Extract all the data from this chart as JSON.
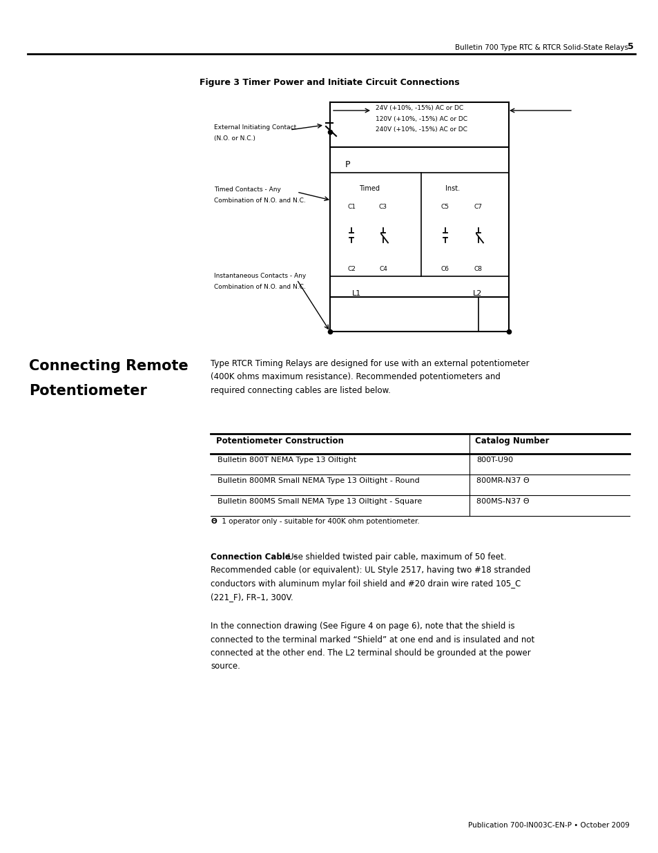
{
  "page_width": 9.54,
  "page_height": 12.35,
  "dpi": 100,
  "bg_color": "#ffffff",
  "header_text": "Bulletin 700 Type RTC & RTCR Solid-State Relays",
  "header_page": "5",
  "footer_text": "Publication 700-IN003C-EN-P • October 2009",
  "figure_title": "Figure 3 Timer Power and Initiate Circuit Connections",
  "section_title_line1": "Connecting Remote",
  "section_title_line2": "Potentiometer",
  "intro_text_lines": [
    "Type RTCR Timing Relays are designed for use with an external potentiometer",
    "(400K ohms maximum resistance). Recommended potentiometers and",
    "required connecting cables are listed below."
  ],
  "table_headers": [
    "Potentiometer Construction",
    "Catalog Number"
  ],
  "table_rows": [
    [
      "Bulletin 800T NEMA Type 13 Oiltight",
      "800T-U90"
    ],
    [
      "Bulletin 800MR Small NEMA Type 13 Oiltight - Round",
      "800MR-N37 Θ"
    ],
    [
      "Bulletin 800MS Small NEMA Type 13 Oiltight - Square",
      "800MS-N37 Θ"
    ]
  ],
  "footnote_sym": "Θ",
  "footnote_text": " 1 operator only - suitable for 400K ohm potentiometer.",
  "connection_cable_bold": "Connection Cable – ",
  "connection_cable_lines": [
    "Use shielded twisted pair cable, maximum of 50 feet.",
    "Recommended cable (or equivalent): UL Style 2517, having two #18 stranded",
    "conductors with aluminum mylar foil shield and #20 drain wire rated 105_C",
    "(221_F), FR–1, 300V."
  ],
  "drawing_lines": [
    "In the connection drawing (See Figure 4 on page 6), note that the shield is",
    "connected to the terminal marked “Shield” at one end and is insulated and not",
    "connected at the other end. The L2 terminal should be grounded at the power",
    "source."
  ],
  "volt_labels": [
    "24V (+10%, -15%) AC or DC",
    "120V (+10%, -15%) AC or DC",
    "240V (+10%, -15%) AC or DC"
  ],
  "ext_contact_label": [
    "External Initiating Contact",
    "(N.O. or N.C.)"
  ],
  "timed_label": [
    "Timed Contacts - Any",
    "Combination of N.O. and N.C."
  ],
  "inst_label": [
    "Instantaneous Contacts - Any",
    "Combination of N.O. and N.C."
  ]
}
